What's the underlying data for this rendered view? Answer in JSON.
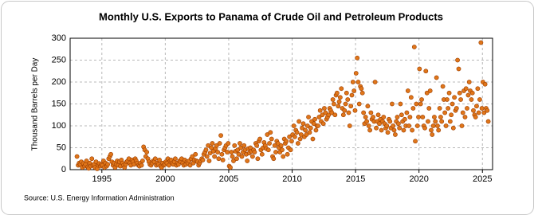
{
  "chart_data": {
    "type": "scatter",
    "title": "Monthly U.S. Exports to Panama of Crude Oil and Petroleum Products",
    "y_label": "Thousand Barrels per Day",
    "source": "Source: U.S. Energy Information Administration",
    "color": "#e0761a",
    "edge_color": "#9a3d00",
    "grid": true,
    "xlim": [
      1992.5,
      2025.8
    ],
    "xticks": [
      1995,
      2000,
      2005,
      2010,
      2015,
      2020,
      2025
    ],
    "ylim": [
      0,
      300
    ],
    "yticks": [
      0,
      50,
      100,
      150,
      200,
      250,
      300
    ],
    "x": [
      1993.04,
      1993.13,
      1993.21,
      1993.29,
      1993.38,
      1993.46,
      1993.54,
      1993.63,
      1993.71,
      1993.79,
      1993.88,
      1993.96,
      1994.04,
      1994.13,
      1994.21,
      1994.29,
      1994.38,
      1994.46,
      1994.54,
      1994.63,
      1994.71,
      1994.79,
      1994.88,
      1994.96,
      1995.04,
      1995.13,
      1995.21,
      1995.29,
      1995.38,
      1995.46,
      1995.54,
      1995.63,
      1995.71,
      1995.79,
      1995.88,
      1995.96,
      1996.04,
      1996.13,
      1996.21,
      1996.29,
      1996.38,
      1996.46,
      1996.54,
      1996.63,
      1996.71,
      1996.79,
      1996.88,
      1996.96,
      1997.04,
      1997.13,
      1997.21,
      1997.29,
      1997.38,
      1997.46,
      1997.54,
      1997.63,
      1997.71,
      1997.79,
      1997.88,
      1997.96,
      1998.04,
      1998.13,
      1998.21,
      1998.29,
      1998.38,
      1998.46,
      1998.54,
      1998.63,
      1998.71,
      1998.79,
      1998.88,
      1998.96,
      1999.04,
      1999.13,
      1999.21,
      1999.29,
      1999.38,
      1999.46,
      1999.54,
      1999.63,
      1999.71,
      1999.79,
      1999.88,
      1999.96,
      2000.04,
      2000.13,
      2000.21,
      2000.29,
      2000.38,
      2000.46,
      2000.54,
      2000.63,
      2000.71,
      2000.79,
      2000.88,
      2000.96,
      2001.04,
      2001.13,
      2001.21,
      2001.29,
      2001.38,
      2001.46,
      2001.54,
      2001.63,
      2001.71,
      2001.79,
      2001.88,
      2001.96,
      2002.04,
      2002.13,
      2002.21,
      2002.29,
      2002.38,
      2002.46,
      2002.54,
      2002.63,
      2002.71,
      2002.79,
      2002.88,
      2002.96,
      2003.04,
      2003.13,
      2003.21,
      2003.29,
      2003.38,
      2003.46,
      2003.54,
      2003.63,
      2003.71,
      2003.79,
      2003.88,
      2003.96,
      2004.04,
      2004.13,
      2004.21,
      2004.29,
      2004.38,
      2004.46,
      2004.54,
      2004.63,
      2004.71,
      2004.79,
      2004.88,
      2004.96,
      2005.04,
      2005.13,
      2005.21,
      2005.29,
      2005.38,
      2005.46,
      2005.54,
      2005.63,
      2005.71,
      2005.79,
      2005.88,
      2005.96,
      2006.04,
      2006.13,
      2006.21,
      2006.29,
      2006.38,
      2006.46,
      2006.54,
      2006.63,
      2006.71,
      2006.79,
      2006.88,
      2006.96,
      2007.04,
      2007.13,
      2007.21,
      2007.29,
      2007.38,
      2007.46,
      2007.54,
      2007.63,
      2007.71,
      2007.79,
      2007.88,
      2007.96,
      2008.04,
      2008.13,
      2008.21,
      2008.29,
      2008.38,
      2008.46,
      2008.54,
      2008.63,
      2008.71,
      2008.79,
      2008.88,
      2008.96,
      2009.04,
      2009.13,
      2009.21,
      2009.29,
      2009.38,
      2009.46,
      2009.54,
      2009.63,
      2009.71,
      2009.79,
      2009.88,
      2009.96,
      2010.04,
      2010.13,
      2010.21,
      2010.29,
      2010.38,
      2010.46,
      2010.54,
      2010.63,
      2010.71,
      2010.79,
      2010.88,
      2010.96,
      2011.04,
      2011.13,
      2011.21,
      2011.29,
      2011.38,
      2011.46,
      2011.54,
      2011.63,
      2011.71,
      2011.79,
      2011.88,
      2011.96,
      2012.04,
      2012.13,
      2012.21,
      2012.29,
      2012.38,
      2012.46,
      2012.54,
      2012.63,
      2012.71,
      2012.79,
      2012.88,
      2012.96,
      2013.04,
      2013.13,
      2013.21,
      2013.29,
      2013.38,
      2013.46,
      2013.54,
      2013.63,
      2013.71,
      2013.79,
      2013.88,
      2013.96,
      2014.04,
      2014.13,
      2014.21,
      2014.29,
      2014.38,
      2014.46,
      2014.54,
      2014.63,
      2014.71,
      2014.79,
      2014.88,
      2014.96,
      2015.04,
      2015.13,
      2015.21,
      2015.29,
      2015.38,
      2015.46,
      2015.54,
      2015.63,
      2015.71,
      2015.79,
      2015.88,
      2015.96,
      2016.04,
      2016.13,
      2016.21,
      2016.29,
      2016.38,
      2016.46,
      2016.54,
      2016.63,
      2016.71,
      2016.79,
      2016.88,
      2016.96,
      2017.04,
      2017.13,
      2017.21,
      2017.29,
      2017.38,
      2017.46,
      2017.54,
      2017.63,
      2017.71,
      2017.79,
      2017.88,
      2017.96,
      2018.04,
      2018.13,
      2018.21,
      2018.29,
      2018.38,
      2018.46,
      2018.54,
      2018.63,
      2018.71,
      2018.79,
      2018.88,
      2018.96,
      2019.04,
      2019.13,
      2019.21,
      2019.29,
      2019.38,
      2019.46,
      2019.54,
      2019.63,
      2019.71,
      2019.79,
      2019.88,
      2019.96,
      2020.04,
      2020.13,
      2020.21,
      2020.29,
      2020.38,
      2020.46,
      2020.54,
      2020.63,
      2020.71,
      2020.79,
      2020.88,
      2020.96,
      2021.04,
      2021.13,
      2021.21,
      2021.29,
      2021.38,
      2021.46,
      2021.54,
      2021.63,
      2021.71,
      2021.79,
      2021.88,
      2021.96,
      2022.04,
      2022.13,
      2022.21,
      2022.29,
      2022.38,
      2022.46,
      2022.54,
      2022.63,
      2022.71,
      2022.79,
      2022.88,
      2022.96,
      2023.04,
      2023.13,
      2023.21,
      2023.29,
      2023.38,
      2023.46,
      2023.54,
      2023.63,
      2023.71,
      2023.79,
      2023.88,
      2023.96,
      2024.04,
      2024.13,
      2024.21,
      2024.29,
      2024.38,
      2024.46,
      2024.54,
      2024.63,
      2024.71,
      2024.79,
      2024.88,
      2024.96,
      2025.04,
      2025.13,
      2025.21,
      2025.29,
      2025.38,
      2025.46
    ],
    "values": [
      30,
      10,
      15,
      12,
      18,
      5,
      14,
      8,
      12,
      20,
      6,
      3,
      15,
      8,
      25,
      10,
      12,
      5,
      18,
      2,
      10,
      14,
      8,
      12,
      10,
      20,
      5,
      15,
      8,
      12,
      25,
      30,
      35,
      18,
      10,
      15,
      5,
      12,
      20,
      10,
      18,
      8,
      22,
      15,
      10,
      5,
      12,
      18,
      20,
      25,
      15,
      10,
      22,
      18,
      12,
      25,
      20,
      15,
      10,
      8,
      15,
      10,
      20,
      52,
      45,
      30,
      40,
      25,
      18,
      12,
      10,
      15,
      20,
      18,
      25,
      10,
      15,
      12,
      22,
      8,
      5,
      15,
      10,
      12,
      18,
      15,
      25,
      10,
      20,
      22,
      15,
      12,
      18,
      25,
      10,
      15,
      12,
      20,
      18,
      25,
      15,
      10,
      22,
      12,
      18,
      15,
      20,
      10,
      25,
      30,
      15,
      22,
      35,
      20,
      18,
      10,
      15,
      20,
      25,
      22,
      35,
      40,
      45,
      30,
      55,
      20,
      38,
      50,
      60,
      42,
      30,
      48,
      55,
      40,
      25,
      60,
      78,
      35,
      22,
      45,
      50,
      55,
      40,
      60,
      8,
      5,
      40,
      30,
      20,
      55,
      42,
      25,
      45,
      35,
      60,
      50,
      30,
      40,
      55,
      45,
      35,
      20,
      48,
      38,
      50,
      42,
      30,
      45,
      40,
      60,
      55,
      25,
      65,
      70,
      45,
      35,
      50,
      62,
      55,
      48,
      80,
      45,
      60,
      85,
      70,
      30,
      25,
      55,
      40,
      65,
      60,
      50,
      40,
      55,
      45,
      30,
      70,
      60,
      65,
      35,
      50,
      75,
      45,
      65,
      80,
      100,
      75,
      90,
      85,
      60,
      110,
      70,
      80,
      95,
      105,
      75,
      90,
      80,
      100,
      120,
      85,
      95,
      110,
      70,
      105,
      115,
      90,
      100,
      100,
      120,
      135,
      110,
      125,
      105,
      140,
      130,
      115,
      120,
      125,
      140,
      135,
      130,
      160,
      150,
      125,
      170,
      175,
      145,
      155,
      165,
      185,
      140,
      125,
      135,
      150,
      175,
      160,
      130,
      100,
      145,
      170,
      200,
      180,
      135,
      220,
      255,
      200,
      150,
      190,
      185,
      175,
      130,
      105,
      120,
      110,
      145,
      100,
      90,
      130,
      115,
      120,
      110,
      200,
      95,
      110,
      125,
      105,
      115,
      90,
      110,
      120,
      105,
      95,
      100,
      85,
      115,
      110,
      95,
      150,
      100,
      90,
      80,
      110,
      120,
      105,
      95,
      150,
      125,
      110,
      90,
      115,
      100,
      130,
      180,
      100,
      120,
      165,
      90,
      140,
      280,
      65,
      150,
      100,
      120,
      230,
      150,
      160,
      120,
      100,
      95,
      225,
      175,
      110,
      140,
      180,
      90,
      80,
      100,
      120,
      110,
      210,
      100,
      90,
      140,
      120,
      110,
      190,
      160,
      130,
      100,
      160,
      140,
      175,
      110,
      125,
      150,
      95,
      165,
      135,
      140,
      250,
      230,
      175,
      160,
      100,
      130,
      180,
      120,
      185,
      140,
      170,
      200,
      180,
      160,
      175,
      135,
      125,
      120,
      145,
      185,
      130,
      160,
      290,
      140,
      200,
      130,
      195,
      140,
      135,
      110
    ]
  }
}
